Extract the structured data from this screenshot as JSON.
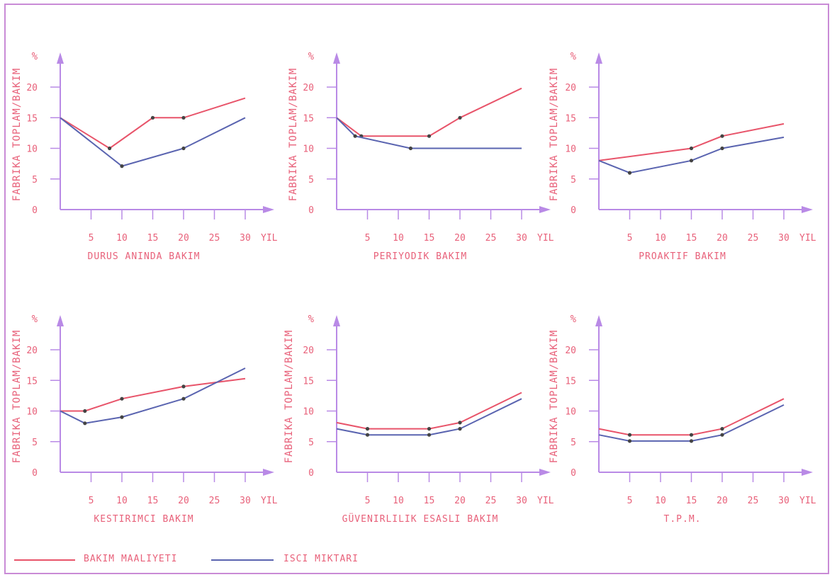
{
  "colors": {
    "axis": "#b98ae6",
    "text": "#e8617a",
    "cost": "#e8546a",
    "worker": "#5a64b0",
    "frame": "#c98bd6",
    "marker": "#444444"
  },
  "legend": {
    "cost_label": "BAKIM MAALIYETI",
    "worker_label": "ISCI MIKTARI"
  },
  "chart_data": [
    {
      "type": "line",
      "title": "DURUS ANINDA BAKIM",
      "ylabel": "FABRIKA TOPLAM/BAKIM",
      "yunit": "%",
      "xunit": "YIL",
      "xticks": [
        5,
        10,
        15,
        20,
        25,
        30
      ],
      "yticks": [
        0,
        5,
        10,
        15,
        20
      ],
      "xlim": [
        0,
        32
      ],
      "ylim": [
        0,
        24
      ],
      "series": [
        {
          "name": "BAKIM MAALIYETI",
          "x": [
            0,
            8,
            15,
            20,
            30
          ],
          "y": [
            15,
            10,
            15,
            15,
            18.2
          ],
          "markers": [
            1,
            2,
            3
          ]
        },
        {
          "name": "ISCI MIKTARI",
          "x": [
            0,
            10,
            20,
            30
          ],
          "y": [
            15,
            7.1,
            10,
            15
          ],
          "markers": [
            1,
            2
          ]
        }
      ]
    },
    {
      "type": "line",
      "title": "PERIYODIK BAKIM",
      "ylabel": "FABRIKA TOPLAM/BAKIM",
      "yunit": "%",
      "xunit": "YIL",
      "xticks": [
        5,
        10,
        15,
        20,
        25,
        30
      ],
      "yticks": [
        0,
        5,
        10,
        15,
        20
      ],
      "xlim": [
        0,
        32
      ],
      "ylim": [
        0,
        24
      ],
      "series": [
        {
          "name": "BAKIM MAALIYETI",
          "x": [
            0,
            4,
            15,
            20,
            30
          ],
          "y": [
            15,
            12,
            12,
            15,
            19.8
          ],
          "markers": [
            1,
            2,
            3
          ]
        },
        {
          "name": "ISCI MIKTARI",
          "x": [
            0,
            3,
            12,
            30
          ],
          "y": [
            15,
            12,
            10,
            10
          ],
          "markers": [
            1,
            2
          ]
        }
      ]
    },
    {
      "type": "line",
      "title": "PROAKTIF BAKIM",
      "ylabel": "FABRIKA TOPLAM/BAKIM",
      "yunit": "%",
      "xunit": "YIL",
      "xticks": [
        5,
        10,
        15,
        20,
        25,
        30
      ],
      "yticks": [
        0,
        5,
        10,
        15,
        20
      ],
      "xlim": [
        0,
        32
      ],
      "ylim": [
        0,
        24
      ],
      "series": [
        {
          "name": "BAKIM MAALIYETI",
          "x": [
            0,
            15,
            20,
            30
          ],
          "y": [
            8,
            10,
            12,
            14
          ],
          "markers": [
            1,
            2
          ]
        },
        {
          "name": "ISCI MIKTARI",
          "x": [
            0,
            5,
            15,
            20,
            30
          ],
          "y": [
            8,
            6,
            8,
            10,
            11.8
          ],
          "markers": [
            1,
            2,
            3
          ]
        }
      ]
    },
    {
      "type": "line",
      "title": "KESTIRIMCI BAKIM",
      "ylabel": "FABRIKA TOPLAM/BAKIM",
      "yunit": "%",
      "xunit": "YIL",
      "xticks": [
        5,
        10,
        15,
        20,
        25,
        30
      ],
      "yticks": [
        0,
        5,
        10,
        15,
        20
      ],
      "xlim": [
        0,
        32
      ],
      "ylim": [
        0,
        24
      ],
      "series": [
        {
          "name": "BAKIM MAALIYETI",
          "x": [
            0,
            4,
            10,
            20,
            30
          ],
          "y": [
            10,
            10,
            12,
            14,
            15.3
          ],
          "markers": [
            1,
            2,
            3
          ]
        },
        {
          "name": "ISCI MIKTARI",
          "x": [
            0,
            4,
            10,
            20,
            30
          ],
          "y": [
            10,
            8,
            9,
            12,
            17
          ],
          "markers": [
            1,
            2,
            3
          ]
        }
      ]
    },
    {
      "type": "line",
      "title": "GÜVENIRLILIK ESASLI BAKIM",
      "ylabel": "FABRIKA TOPLAM/BAKIM",
      "yunit": "%",
      "xunit": "YIL",
      "xticks": [
        5,
        10,
        15,
        20,
        25,
        30
      ],
      "yticks": [
        0,
        5,
        10,
        15,
        20
      ],
      "xlim": [
        0,
        32
      ],
      "ylim": [
        0,
        24
      ],
      "series": [
        {
          "name": "BAKIM MAALIYETI",
          "x": [
            0,
            5,
            15,
            20,
            30
          ],
          "y": [
            8.1,
            7.1,
            7.1,
            8.1,
            13
          ],
          "markers": [
            1,
            2,
            3
          ]
        },
        {
          "name": "ISCI MIKTARI",
          "x": [
            0,
            5,
            15,
            20,
            30
          ],
          "y": [
            7.1,
            6.1,
            6.1,
            7.1,
            12
          ],
          "markers": [
            1,
            2,
            3
          ]
        }
      ]
    },
    {
      "type": "line",
      "title": "T.P.M.",
      "ylabel": "FABRIKA TOPLAM/BAKIM",
      "yunit": "%",
      "xunit": "YIL",
      "xticks": [
        5,
        10,
        15,
        20,
        25,
        30
      ],
      "yticks": [
        0,
        5,
        10,
        15,
        20
      ],
      "xlim": [
        0,
        32
      ],
      "ylim": [
        0,
        24
      ],
      "series": [
        {
          "name": "BAKIM MAALIYETI",
          "x": [
            0,
            5,
            15,
            20,
            30
          ],
          "y": [
            7.1,
            6.1,
            6.1,
            7.1,
            12
          ],
          "markers": [
            1,
            2,
            3
          ]
        },
        {
          "name": "ISCI MIKTARI",
          "x": [
            0,
            5,
            15,
            20,
            30
          ],
          "y": [
            6.1,
            5.1,
            5.1,
            6.1,
            11
          ],
          "markers": [
            1,
            2,
            3
          ]
        }
      ]
    }
  ]
}
